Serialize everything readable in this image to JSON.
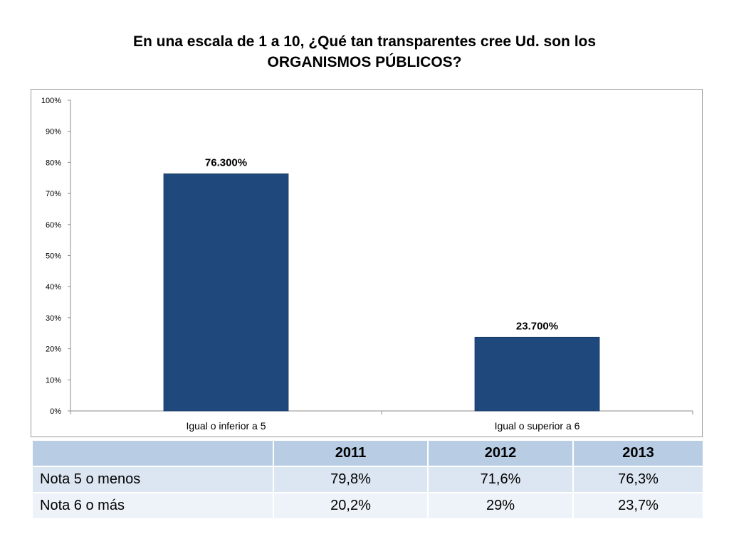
{
  "title": {
    "line1": "En una escala de 1 a 10, ¿Qué tan transparentes cree Ud. son los",
    "line2": "ORGANISMOS PÚBLICOS?"
  },
  "chart_data": {
    "type": "bar",
    "categories": [
      "Igual o inferior a 5",
      "Igual o superior a 6"
    ],
    "values": [
      76.3,
      23.7
    ],
    "data_labels": [
      "76.300%",
      "23.700%"
    ],
    "yticks": [
      "0%",
      "10%",
      "20%",
      "30%",
      "40%",
      "50%",
      "60%",
      "70%",
      "80%",
      "90%",
      "100%"
    ],
    "ylim": [
      0,
      100
    ],
    "xlabel": "",
    "ylabel": "",
    "grid": false,
    "legend": "none",
    "bar_color": "#1f497d"
  },
  "table": {
    "corner": "",
    "columns": [
      "2011",
      "2012",
      "2013"
    ],
    "rows": [
      {
        "label": "Nota 5 o menos",
        "cells": [
          "79,8%",
          "71,6%",
          "76,3%"
        ]
      },
      {
        "label": "Nota 6 o más",
        "cells": [
          "20,2%",
          "29%",
          "23,7%"
        ]
      }
    ]
  }
}
